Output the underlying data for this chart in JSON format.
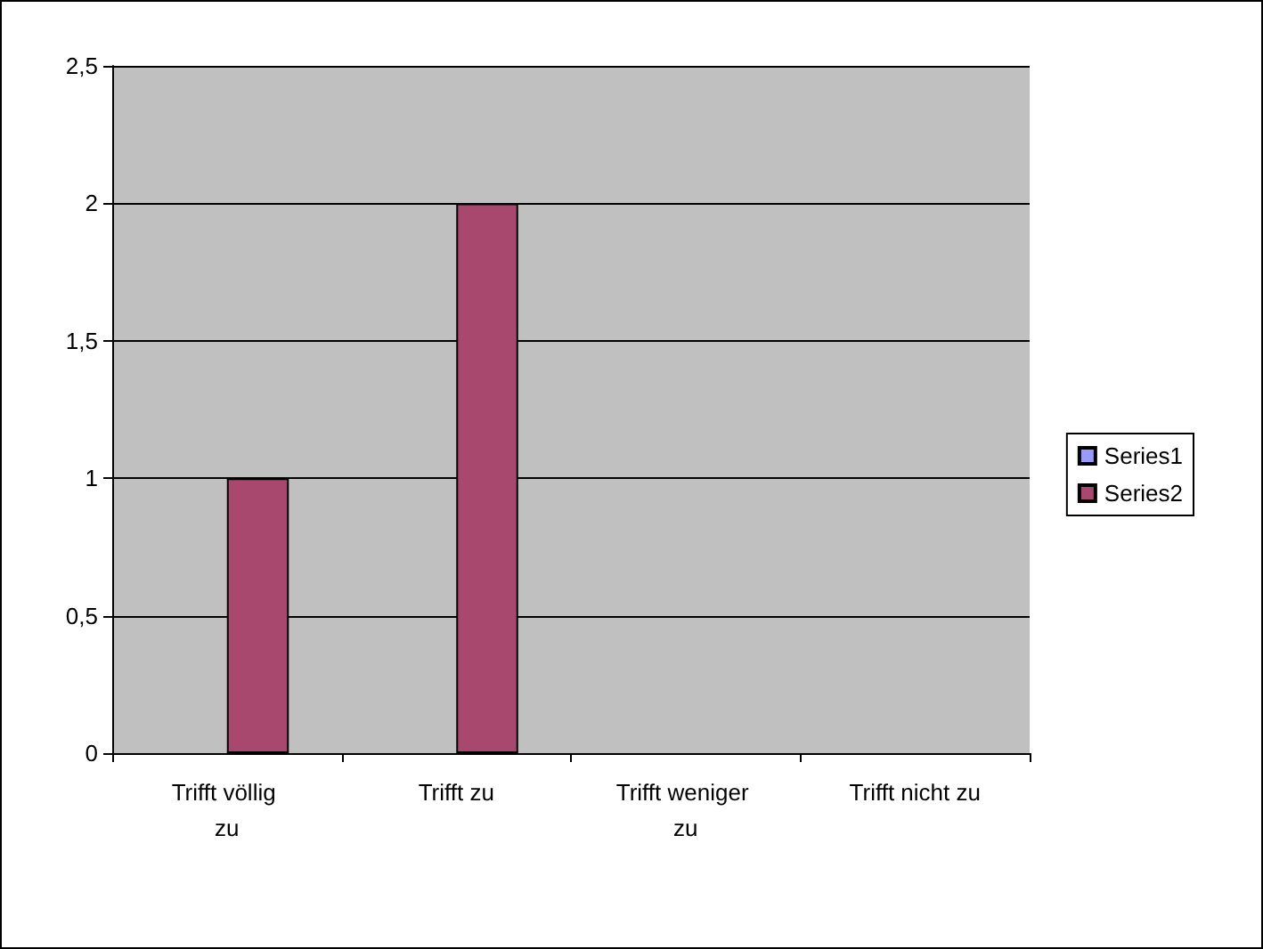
{
  "chart_data": {
    "type": "bar",
    "categories": [
      "Trifft völlig zu",
      "Trifft zu",
      "Trifft weniger zu",
      "Trifft nicht zu"
    ],
    "series": [
      {
        "name": "Series1",
        "color": "#9999ff",
        "values": [
          null,
          null,
          null,
          null
        ]
      },
      {
        "name": "Series2",
        "color": "#a8486f",
        "values": [
          1,
          2,
          null,
          null
        ]
      }
    ],
    "ylim": [
      0,
      2.5
    ],
    "yticks": [
      0,
      {
        "value": 0.5,
        "label": "0,5"
      },
      1,
      {
        "value": 1.5,
        "label": "1,5"
      },
      2,
      {
        "value": 2.5,
        "label": "2,5"
      }
    ],
    "grid": "y",
    "legend": "right"
  }
}
